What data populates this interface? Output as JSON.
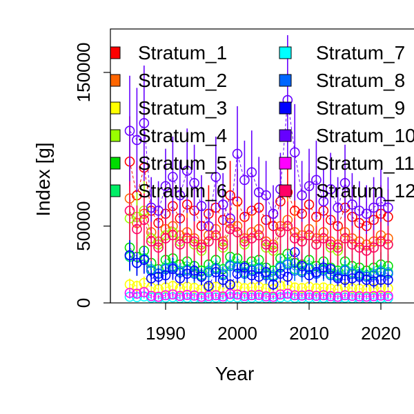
{
  "chart_data": {
    "type": "scatter",
    "xlabel": "Year",
    "ylabel": "Index [g]",
    "xlim": [
      1982,
      2025
    ],
    "ylim": [
      0,
      175000
    ],
    "x_ticks": [
      1990,
      2000,
      2010,
      2020
    ],
    "y_ticks": [
      0,
      50000,
      150000
    ],
    "x": [
      1985,
      1986,
      1987,
      1988,
      1989,
      1990,
      1991,
      1992,
      1993,
      1994,
      1995,
      1996,
      1997,
      1998,
      1999,
      2000,
      2001,
      2002,
      2003,
      2004,
      2005,
      2006,
      2007,
      2008,
      2009,
      2010,
      2011,
      2012,
      2013,
      2014,
      2015,
      2016,
      2017,
      2018,
      2019,
      2020,
      2021
    ],
    "legend_placement": "top (inside plot, two columns, clipped at right)",
    "series": [
      {
        "name": "Stratum_1",
        "color": "#FF0000",
        "values": [
          92000,
          70000,
          88000,
          60000,
          52000,
          58000,
          63000,
          55000,
          64000,
          60000,
          50000,
          58000,
          62000,
          54000,
          70000,
          66000,
          56000,
          60000,
          62000,
          54000,
          50000,
          66000,
          72000,
          60000,
          58000,
          64000,
          56000,
          60000,
          54000,
          50000,
          62000,
          56000,
          52000,
          50000,
          54000,
          58000,
          56000
        ]
      },
      {
        "name": "Stratum_2",
        "color": "#FF6600",
        "values": [
          68000,
          52000,
          58000,
          46000,
          40000,
          48000,
          50000,
          44000,
          46000,
          42000,
          38000,
          44000,
          48000,
          40000,
          52000,
          50000,
          42000,
          46000,
          48000,
          40000,
          38000,
          50000,
          54000,
          46000,
          44000,
          48000,
          42000,
          46000,
          40000,
          38000,
          46000,
          42000,
          40000,
          38000,
          40000,
          44000,
          42000
        ]
      },
      {
        "name": "Stratum_3",
        "color": "#FFFF00",
        "values": [
          12000,
          11000,
          13000,
          10000,
          9000,
          10000,
          11000,
          9500,
          10500,
          9800,
          8800,
          10000,
          10500,
          9200,
          11500,
          10800,
          9600,
          10200,
          10400,
          9300,
          8900,
          11000,
          11800,
          10000,
          9700,
          10500,
          9500,
          10000,
          9200,
          8800,
          10200,
          9600,
          9200,
          8900,
          9300,
          9800,
          9500
        ]
      },
      {
        "name": "Stratum_4",
        "color": "#99FF00",
        "values": [
          55000,
          56000,
          60000,
          42000,
          38000,
          44000,
          46000,
          40000,
          42000,
          38000,
          34000,
          40000,
          44000,
          36000,
          48000,
          46000,
          38000,
          42000,
          44000,
          36000,
          34000,
          46000,
          50000,
          42000,
          40000,
          44000,
          38000,
          42000,
          36000,
          34000,
          42000,
          38000,
          36000,
          34000,
          36000,
          40000,
          38000
        ]
      },
      {
        "name": "Stratum_5",
        "color": "#00DD00",
        "values": [
          36000,
          30000,
          34000,
          26000,
          22000,
          28000,
          29000,
          25000,
          27000,
          24000,
          21000,
          25000,
          28000,
          22000,
          30000,
          29000,
          24000,
          27000,
          28000,
          23000,
          21000,
          29000,
          32000,
          26000,
          25000,
          28000,
          24000,
          27000,
          23000,
          21000,
          27000,
          24000,
          23000,
          21000,
          23000,
          25000,
          24000
        ]
      },
      {
        "name": "Stratum_6",
        "color": "#00EE66",
        "values": [
          30000,
          26000,
          29000,
          22000,
          19000,
          23000,
          24000,
          21000,
          22000,
          20000,
          18000,
          21000,
          23000,
          19000,
          25000,
          24000,
          20000,
          22000,
          23000,
          19000,
          18000,
          24000,
          26000,
          22000,
          21000,
          23000,
          20000,
          22000,
          19000,
          18000,
          22000,
          20000,
          19000,
          18000,
          19000,
          21000,
          20000
        ]
      },
      {
        "name": "Stratum_7",
        "color": "#00FFFF",
        "values": [
          4000,
          3800,
          4200,
          3400,
          3000,
          3500,
          3700,
          3200,
          3400,
          3100,
          2900,
          3300,
          3500,
          3000,
          3800,
          3600,
          3200,
          3400,
          3500,
          3100,
          2900,
          3600,
          3900,
          3300,
          3200,
          3500,
          3100,
          3300,
          3000,
          2900,
          3400,
          3100,
          3000,
          2900,
          3000,
          3200,
          3100
        ]
      },
      {
        "name": "Stratum_8",
        "color": "#0066FF",
        "values": [
          31000,
          26000,
          28000,
          21000,
          19000,
          22000,
          23000,
          20000,
          21000,
          19000,
          17000,
          20000,
          22000,
          18000,
          24000,
          23000,
          19000,
          21000,
          22000,
          18000,
          17000,
          23000,
          25000,
          21000,
          20000,
          22000,
          19000,
          21000,
          18000,
          17000,
          21000,
          19000,
          18000,
          17000,
          18000,
          20000,
          19000
        ]
      },
      {
        "name": "Stratum_9",
        "color": "#0000FF",
        "values": [
          31000,
          26000,
          28000,
          16000,
          17000,
          18000,
          22000,
          16000,
          19000,
          21000,
          17000,
          11000,
          20000,
          15000,
          12000,
          19000,
          23000,
          18000,
          17000,
          20000,
          12000,
          19000,
          17000,
          33000,
          24000,
          18000,
          20000,
          23000,
          22000,
          16000,
          15000,
          16000,
          17000,
          15000,
          14000,
          15000,
          15000
        ]
      },
      {
        "name": "Stratum_10",
        "color": "#6600FF",
        "values": [
          112000,
          106000,
          117000,
          62000,
          60000,
          76000,
          82000,
          70000,
          86000,
          78000,
          63000,
          50000,
          82000,
          64000,
          55000,
          97000,
          80000,
          85000,
          72000,
          70000,
          58000,
          74000,
          132000,
          98000,
          70000,
          76000,
          80000,
          66000,
          74000,
          62000,
          78000,
          64000,
          60000,
          58000,
          62000,
          66000,
          62000
        ]
      },
      {
        "name": "Stratum_11",
        "color": "#FF00FF",
        "values": [
          6500,
          6000,
          7000,
          4500,
          4000,
          5000,
          5500,
          4500,
          5200,
          4800,
          4000,
          4500,
          5000,
          4200,
          5800,
          5500,
          4500,
          5000,
          5200,
          4300,
          4000,
          5500,
          6000,
          5000,
          4800,
          5200,
          4600,
          5000,
          4400,
          4000,
          5000,
          4600,
          4300,
          4100,
          4400,
          4800,
          4500
        ]
      },
      {
        "name": "Stratum_12",
        "color": "#FF0066",
        "values": [
          60000,
          48000,
          54000,
          40000,
          36000,
          42000,
          44000,
          38000,
          42000,
          40000,
          36000,
          40000,
          44000,
          38000,
          48000,
          46000,
          40000,
          42000,
          44000,
          38000,
          36000,
          46000,
          50000,
          42000,
          40000,
          44000,
          38000,
          42000,
          38000,
          36000,
          42000,
          38000,
          36000,
          34000,
          36000,
          40000,
          38000
        ]
      }
    ]
  }
}
